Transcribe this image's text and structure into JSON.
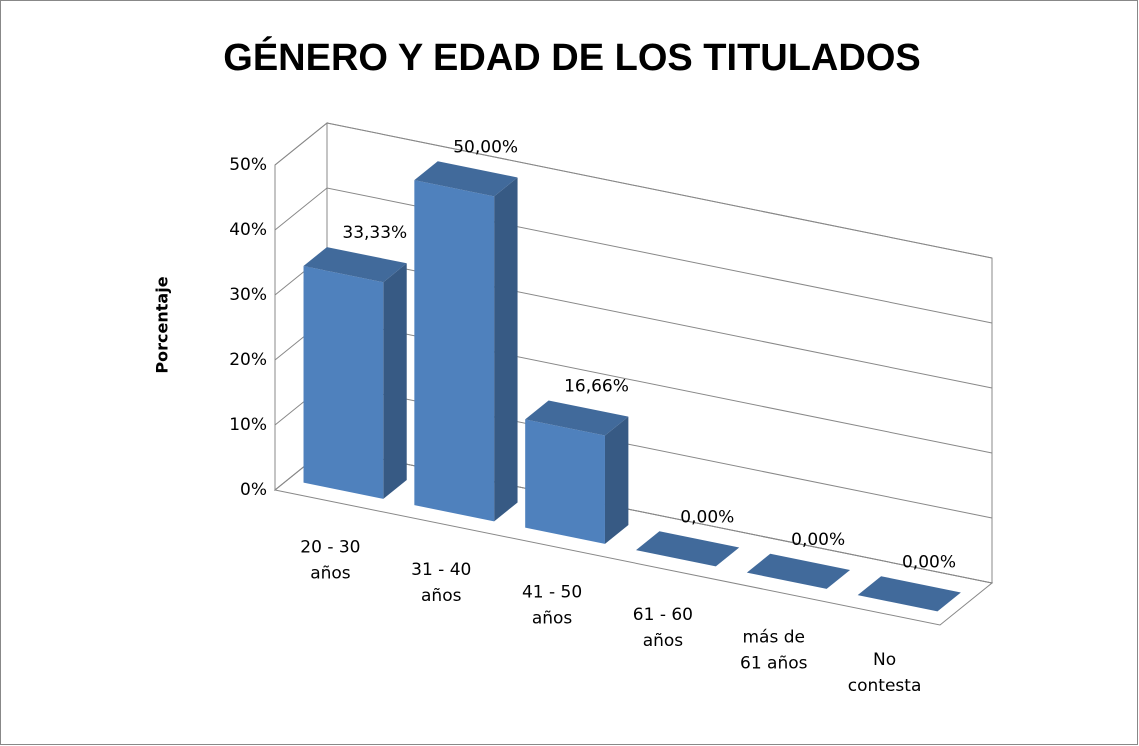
{
  "chart_data": {
    "type": "bar3d",
    "title": "GÉNERO Y EDAD DE LOS TITULADOS",
    "y_label": "Porcentaje",
    "categories": [
      [
        "20 - 30",
        "años"
      ],
      [
        "31 - 40",
        "años"
      ],
      [
        "41 - 50",
        "años"
      ],
      [
        "61 - 60",
        "años"
      ],
      [
        "más de",
        "61 años"
      ],
      [
        "No",
        "contesta"
      ]
    ],
    "values": [
      33.33,
      50,
      16.66,
      0,
      0,
      0
    ],
    "value_labels": [
      "33,33%",
      "50,00%",
      "16,66%",
      "0,00%",
      "0,00%",
      "0,00%"
    ],
    "color": "#4f81bd",
    "ylim": [
      0,
      50
    ],
    "yticks": [
      {
        "value": 0,
        "label": "0%"
      },
      {
        "value": 10,
        "label": "10%"
      },
      {
        "value": 20,
        "label": "20%"
      },
      {
        "value": 30,
        "label": "30%"
      },
      {
        "value": 40,
        "label": "40%"
      },
      {
        "value": 50,
        "label": "50%"
      }
    ],
    "grid": true
  }
}
